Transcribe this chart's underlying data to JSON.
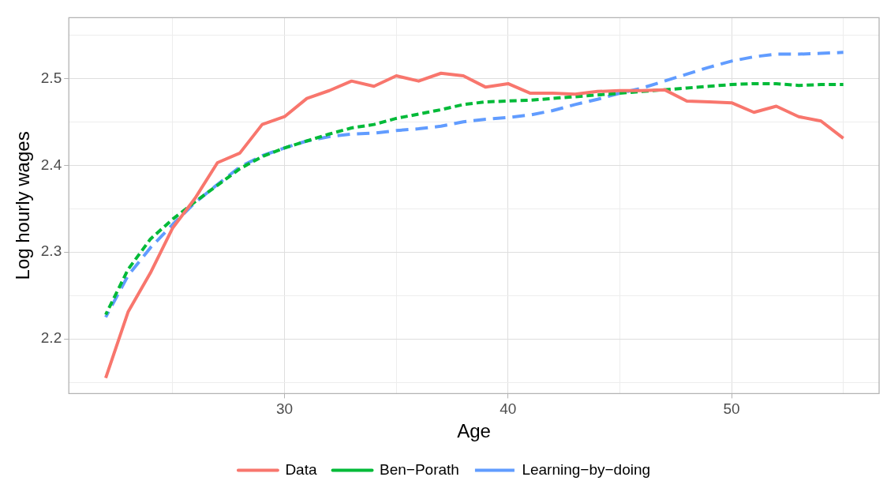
{
  "chart_data": {
    "type": "line",
    "xlabel": "Age",
    "ylabel": "Log hourly wages",
    "x": [
      22,
      23,
      24,
      25,
      26,
      27,
      28,
      29,
      30,
      31,
      32,
      33,
      34,
      35,
      36,
      37,
      38,
      39,
      40,
      41,
      42,
      43,
      44,
      45,
      46,
      47,
      48,
      49,
      50,
      51,
      52,
      53,
      54,
      55
    ],
    "series": [
      {
        "name": "Data",
        "color": "#f8766d",
        "line_style": "solid",
        "values": [
          2.155,
          2.231,
          2.276,
          2.328,
          2.362,
          2.403,
          2.414,
          2.447,
          2.456,
          2.477,
          2.486,
          2.497,
          2.491,
          2.503,
          2.497,
          2.506,
          2.503,
          2.49,
          2.494,
          2.483,
          2.483,
          2.482,
          2.485,
          2.486,
          2.486,
          2.487,
          2.474,
          2.473,
          2.472,
          2.461,
          2.468,
          2.456,
          2.451,
          2.431
        ]
      },
      {
        "name": "Ben−Porath",
        "color": "#00ba38",
        "line_style": "dashed",
        "values": [
          2.228,
          2.28,
          2.315,
          2.338,
          2.358,
          2.377,
          2.396,
          2.41,
          2.42,
          2.428,
          2.436,
          2.443,
          2.447,
          2.454,
          2.459,
          2.464,
          2.47,
          2.473,
          2.474,
          2.475,
          2.477,
          2.479,
          2.481,
          2.483,
          2.485,
          2.487,
          2.489,
          2.491,
          2.493,
          2.494,
          2.494,
          2.492,
          2.493,
          2.493
        ]
      },
      {
        "name": "Learning−by−doing",
        "color": "#619cff",
        "line_style": "dashed",
        "values": [
          2.225,
          2.273,
          2.305,
          2.332,
          2.357,
          2.378,
          2.398,
          2.411,
          2.42,
          2.428,
          2.433,
          2.436,
          2.437,
          2.44,
          2.442,
          2.445,
          2.45,
          2.453,
          2.455,
          2.458,
          2.463,
          2.47,
          2.476,
          2.483,
          2.489,
          2.497,
          2.505,
          2.513,
          2.52,
          2.525,
          2.528,
          2.528,
          2.529,
          2.53
        ]
      }
    ],
    "xlim": [
      20.35,
      56.6
    ],
    "xticks": [
      {
        "value": 25,
        "label": null
      },
      30,
      {
        "value": 35,
        "label": null
      },
      40,
      {
        "value": 45,
        "label": null
      },
      50,
      {
        "value": 55,
        "label": null
      }
    ],
    "ylim": [
      2.137,
      2.57
    ],
    "yticks": [
      {
        "value": 2.15,
        "label": null
      },
      2.2,
      {
        "value": 2.25,
        "label": null
      },
      2.3,
      {
        "value": 2.35,
        "label": null
      },
      2.4,
      {
        "value": 2.45,
        "label": null
      },
      2.5,
      {
        "value": 2.55,
        "label": null
      }
    ],
    "grid": true,
    "legend": "bottom",
    "marker": "none"
  }
}
